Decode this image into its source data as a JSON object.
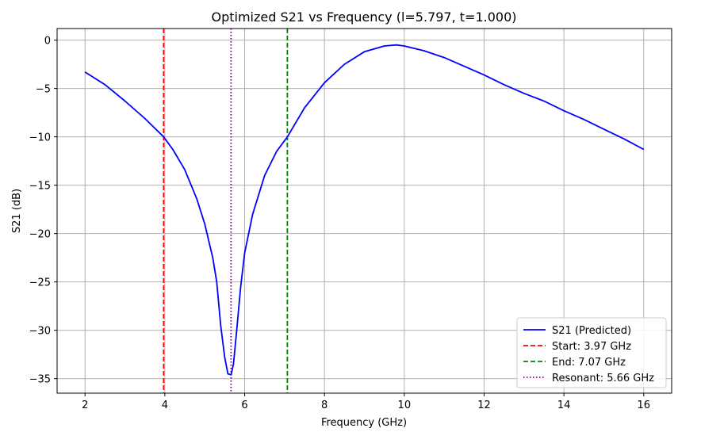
{
  "chart_data": {
    "type": "line",
    "title": "Optimized S21 vs Frequency (l=5.797, t=1.000)",
    "xlabel": "Frequency (GHz)",
    "ylabel": "S21 (dB)",
    "xlim": [
      1.3,
      16.7
    ],
    "ylim": [
      -36.5,
      1.2
    ],
    "xticks": [
      2,
      4,
      6,
      8,
      10,
      12,
      14,
      16
    ],
    "yticks": [
      0,
      -5,
      -10,
      -15,
      -20,
      -25,
      -30,
      -35
    ],
    "grid": true,
    "legend_position": "bottom-right",
    "series": [
      {
        "name": "S21 (Predicted)",
        "color": "#0000ff",
        "style": "solid",
        "x": [
          2.0,
          2.5,
          3.0,
          3.5,
          3.97,
          4.2,
          4.5,
          4.8,
          5.0,
          5.2,
          5.3,
          5.4,
          5.5,
          5.58,
          5.66,
          5.72,
          5.8,
          5.9,
          6.0,
          6.2,
          6.5,
          6.8,
          7.07,
          7.5,
          8.0,
          8.5,
          9.0,
          9.5,
          9.8,
          10.0,
          10.5,
          11.0,
          11.5,
          12.0,
          12.5,
          13.0,
          13.5,
          14.0,
          14.5,
          15.0,
          15.5,
          16.0
        ],
        "y": [
          -3.3,
          -4.6,
          -6.3,
          -8.1,
          -10.0,
          -11.3,
          -13.4,
          -16.4,
          -19.0,
          -22.5,
          -25.0,
          -29.5,
          -32.8,
          -34.5,
          -34.6,
          -33.5,
          -30.0,
          -25.5,
          -22.0,
          -18.0,
          -14.0,
          -11.5,
          -10.0,
          -7.0,
          -4.4,
          -2.5,
          -1.2,
          -0.6,
          -0.5,
          -0.6,
          -1.1,
          -1.8,
          -2.7,
          -3.6,
          -4.6,
          -5.5,
          -6.3,
          -7.3,
          -8.2,
          -9.2,
          -10.2,
          -11.3
        ]
      },
      {
        "name": "Start: 3.97 GHz",
        "color": "#ff0000",
        "style": "dashed",
        "vline": 3.97
      },
      {
        "name": "End: 7.07 GHz",
        "color": "#008000",
        "style": "dashed",
        "vline": 7.07
      },
      {
        "name": "Resonant: 5.66 GHz",
        "color": "#800080",
        "style": "dotted",
        "vline": 5.66
      }
    ]
  }
}
